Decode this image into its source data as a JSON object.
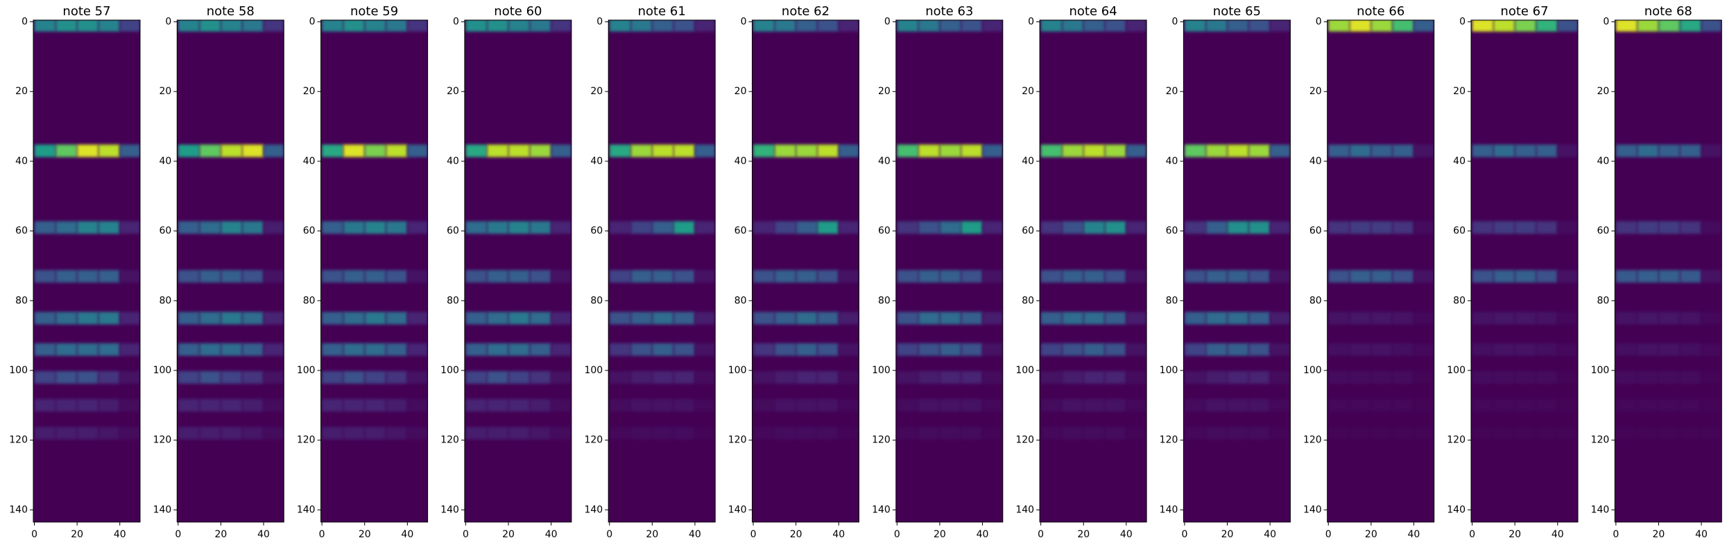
{
  "chart_data": [
    {
      "type": "heatmap",
      "title": "note 57",
      "colormap": "viridis",
      "clim": [
        0,
        1
      ],
      "xlim": [
        -0.5,
        49.5
      ],
      "ylim": [
        143.5,
        -0.5
      ],
      "xticks": [
        0,
        20,
        40
      ],
      "yticks": [
        0,
        20,
        40,
        60,
        80,
        100,
        120,
        140
      ],
      "x": [
        0,
        10,
        20,
        30,
        40
      ],
      "y": [
        1,
        37,
        59,
        73,
        85,
        94,
        102,
        110,
        118
      ],
      "values": [
        [
          0.45,
          0.5,
          0.5,
          0.45,
          0.2
        ],
        [
          0.55,
          0.75,
          0.95,
          0.9,
          0.3
        ],
        [
          0.3,
          0.35,
          0.45,
          0.45,
          0.1
        ],
        [
          0.25,
          0.3,
          0.3,
          0.3,
          0.05
        ],
        [
          0.3,
          0.35,
          0.4,
          0.4,
          0.1
        ],
        [
          0.3,
          0.35,
          0.35,
          0.35,
          0.1
        ],
        [
          0.2,
          0.25,
          0.25,
          0.15,
          0.05
        ],
        [
          0.1,
          0.1,
          0.1,
          0.08,
          0.03
        ],
        [
          0.08,
          0.08,
          0.08,
          0.06,
          0.03
        ]
      ]
    },
    {
      "type": "heatmap",
      "title": "note 58",
      "colormap": "viridis",
      "clim": [
        0,
        1
      ],
      "xlim": [
        -0.5,
        49.5
      ],
      "ylim": [
        143.5,
        -0.5
      ],
      "xticks": [
        0,
        20,
        40
      ],
      "yticks": [
        0,
        20,
        40,
        60,
        80,
        100,
        120,
        140
      ],
      "x": [
        0,
        10,
        20,
        30,
        40
      ],
      "y": [
        1,
        37,
        59,
        73,
        85,
        94,
        102,
        110,
        118
      ],
      "values": [
        [
          0.45,
          0.5,
          0.45,
          0.4,
          0.15
        ],
        [
          0.55,
          0.75,
          0.9,
          0.95,
          0.3
        ],
        [
          0.3,
          0.35,
          0.45,
          0.4,
          0.08
        ],
        [
          0.25,
          0.3,
          0.3,
          0.25,
          0.05
        ],
        [
          0.3,
          0.35,
          0.4,
          0.35,
          0.1
        ],
        [
          0.3,
          0.35,
          0.35,
          0.3,
          0.1
        ],
        [
          0.2,
          0.25,
          0.2,
          0.15,
          0.05
        ],
        [
          0.1,
          0.1,
          0.1,
          0.08,
          0.03
        ],
        [
          0.08,
          0.08,
          0.08,
          0.06,
          0.03
        ]
      ]
    },
    {
      "type": "heatmap",
      "title": "note 59",
      "colormap": "viridis",
      "clim": [
        0,
        1
      ],
      "xlim": [
        -0.5,
        49.5
      ],
      "ylim": [
        143.5,
        -0.5
      ],
      "xticks": [
        0,
        20,
        40
      ],
      "yticks": [
        0,
        20,
        40,
        60,
        80,
        100,
        120,
        140
      ],
      "x": [
        0,
        10,
        20,
        30,
        40
      ],
      "y": [
        1,
        37,
        59,
        73,
        85,
        94,
        102,
        110,
        118
      ],
      "values": [
        [
          0.45,
          0.5,
          0.45,
          0.4,
          0.15
        ],
        [
          0.6,
          0.95,
          0.8,
          0.9,
          0.3
        ],
        [
          0.3,
          0.4,
          0.45,
          0.4,
          0.1
        ],
        [
          0.25,
          0.3,
          0.3,
          0.25,
          0.05
        ],
        [
          0.3,
          0.35,
          0.4,
          0.35,
          0.1
        ],
        [
          0.3,
          0.35,
          0.35,
          0.3,
          0.1
        ],
        [
          0.2,
          0.25,
          0.2,
          0.15,
          0.05
        ],
        [
          0.1,
          0.1,
          0.1,
          0.08,
          0.03
        ],
        [
          0.08,
          0.08,
          0.08,
          0.06,
          0.03
        ]
      ]
    },
    {
      "type": "heatmap",
      "title": "note 60",
      "colormap": "viridis",
      "clim": [
        0,
        1
      ],
      "xlim": [
        -0.5,
        49.5
      ],
      "ylim": [
        143.5,
        -0.5
      ],
      "xticks": [
        0,
        20,
        40
      ],
      "yticks": [
        0,
        20,
        40,
        60,
        80,
        100,
        120,
        140
      ],
      "x": [
        0,
        10,
        20,
        30,
        40
      ],
      "y": [
        1,
        37,
        59,
        73,
        85,
        94,
        102,
        110,
        118
      ],
      "values": [
        [
          0.5,
          0.5,
          0.45,
          0.4,
          0.15
        ],
        [
          0.6,
          0.9,
          0.9,
          0.85,
          0.3
        ],
        [
          0.35,
          0.4,
          0.45,
          0.4,
          0.1
        ],
        [
          0.25,
          0.3,
          0.3,
          0.25,
          0.05
        ],
        [
          0.3,
          0.35,
          0.4,
          0.35,
          0.1
        ],
        [
          0.3,
          0.35,
          0.35,
          0.3,
          0.1
        ],
        [
          0.2,
          0.25,
          0.2,
          0.15,
          0.05
        ],
        [
          0.1,
          0.1,
          0.1,
          0.08,
          0.03
        ],
        [
          0.08,
          0.08,
          0.08,
          0.06,
          0.03
        ]
      ]
    },
    {
      "type": "heatmap",
      "title": "note 61",
      "colormap": "viridis",
      "clim": [
        0,
        1
      ],
      "xlim": [
        -0.5,
        49.5
      ],
      "ylim": [
        143.5,
        -0.5
      ],
      "xticks": [
        0,
        20,
        40
      ],
      "yticks": [
        0,
        20,
        40,
        60,
        80,
        100,
        120,
        140
      ],
      "x": [
        0,
        10,
        20,
        30,
        40
      ],
      "y": [
        1,
        37,
        59,
        73,
        85,
        94,
        102,
        110,
        118
      ],
      "values": [
        [
          0.45,
          0.4,
          0.3,
          0.25,
          0.1
        ],
        [
          0.6,
          0.85,
          0.9,
          0.9,
          0.3
        ],
        [
          0.1,
          0.2,
          0.3,
          0.55,
          0.1
        ],
        [
          0.2,
          0.3,
          0.3,
          0.25,
          0.05
        ],
        [
          0.25,
          0.3,
          0.35,
          0.3,
          0.08
        ],
        [
          0.15,
          0.25,
          0.3,
          0.25,
          0.05
        ],
        [
          0.05,
          0.08,
          0.1,
          0.1,
          0.03
        ],
        [
          0.03,
          0.05,
          0.05,
          0.05,
          0.02
        ],
        [
          0.02,
          0.03,
          0.03,
          0.03,
          0.01
        ]
      ]
    },
    {
      "type": "heatmap",
      "title": "note 62",
      "colormap": "viridis",
      "clim": [
        0,
        1
      ],
      "xlim": [
        -0.5,
        49.5
      ],
      "ylim": [
        143.5,
        -0.5
      ],
      "xticks": [
        0,
        20,
        40
      ],
      "yticks": [
        0,
        20,
        40,
        60,
        80,
        100,
        120,
        140
      ],
      "x": [
        0,
        10,
        20,
        30,
        40
      ],
      "y": [
        1,
        37,
        59,
        73,
        85,
        94,
        102,
        110,
        118
      ],
      "values": [
        [
          0.45,
          0.4,
          0.3,
          0.25,
          0.1
        ],
        [
          0.65,
          0.85,
          0.85,
          0.9,
          0.3
        ],
        [
          0.1,
          0.2,
          0.3,
          0.55,
          0.1
        ],
        [
          0.25,
          0.3,
          0.3,
          0.25,
          0.05
        ],
        [
          0.25,
          0.3,
          0.35,
          0.3,
          0.08
        ],
        [
          0.15,
          0.25,
          0.3,
          0.25,
          0.05
        ],
        [
          0.05,
          0.08,
          0.1,
          0.1,
          0.03
        ],
        [
          0.03,
          0.05,
          0.05,
          0.05,
          0.02
        ],
        [
          0.02,
          0.03,
          0.03,
          0.03,
          0.01
        ]
      ]
    },
    {
      "type": "heatmap",
      "title": "note 63",
      "colormap": "viridis",
      "clim": [
        0,
        1
      ],
      "xlim": [
        -0.5,
        49.5
      ],
      "ylim": [
        143.5,
        -0.5
      ],
      "xticks": [
        0,
        20,
        40
      ],
      "yticks": [
        0,
        20,
        40,
        60,
        80,
        100,
        120,
        140
      ],
      "x": [
        0,
        10,
        20,
        30,
        40
      ],
      "y": [
        1,
        37,
        59,
        73,
        85,
        94,
        102,
        110,
        118
      ],
      "values": [
        [
          0.45,
          0.4,
          0.3,
          0.25,
          0.1
        ],
        [
          0.7,
          0.9,
          0.85,
          0.9,
          0.3
        ],
        [
          0.15,
          0.25,
          0.35,
          0.55,
          0.1
        ],
        [
          0.25,
          0.3,
          0.3,
          0.25,
          0.05
        ],
        [
          0.25,
          0.35,
          0.35,
          0.3,
          0.08
        ],
        [
          0.2,
          0.25,
          0.3,
          0.25,
          0.05
        ],
        [
          0.05,
          0.08,
          0.1,
          0.1,
          0.03
        ],
        [
          0.03,
          0.05,
          0.05,
          0.05,
          0.02
        ],
        [
          0.02,
          0.03,
          0.03,
          0.03,
          0.01
        ]
      ]
    },
    {
      "type": "heatmap",
      "title": "note 64",
      "colormap": "viridis",
      "clim": [
        0,
        1
      ],
      "xlim": [
        -0.5,
        49.5
      ],
      "ylim": [
        143.5,
        -0.5
      ],
      "xticks": [
        0,
        20,
        40
      ],
      "yticks": [
        0,
        20,
        40,
        60,
        80,
        100,
        120,
        140
      ],
      "x": [
        0,
        10,
        20,
        30,
        40
      ],
      "y": [
        1,
        37,
        59,
        73,
        85,
        94,
        102,
        110,
        118
      ],
      "values": [
        [
          0.45,
          0.4,
          0.3,
          0.25,
          0.1
        ],
        [
          0.7,
          0.85,
          0.9,
          0.85,
          0.3
        ],
        [
          0.15,
          0.25,
          0.45,
          0.5,
          0.1
        ],
        [
          0.25,
          0.3,
          0.3,
          0.25,
          0.05
        ],
        [
          0.3,
          0.35,
          0.35,
          0.3,
          0.08
        ],
        [
          0.2,
          0.25,
          0.3,
          0.25,
          0.05
        ],
        [
          0.05,
          0.08,
          0.1,
          0.1,
          0.03
        ],
        [
          0.03,
          0.05,
          0.05,
          0.05,
          0.02
        ],
        [
          0.02,
          0.03,
          0.03,
          0.03,
          0.01
        ]
      ]
    },
    {
      "type": "heatmap",
      "title": "note 65",
      "colormap": "viridis",
      "clim": [
        0,
        1
      ],
      "xlim": [
        -0.5,
        49.5
      ],
      "ylim": [
        143.5,
        -0.5
      ],
      "xticks": [
        0,
        20,
        40
      ],
      "yticks": [
        0,
        20,
        40,
        60,
        80,
        100,
        120,
        140
      ],
      "x": [
        0,
        10,
        20,
        30,
        40
      ],
      "y": [
        1,
        37,
        59,
        73,
        85,
        94,
        102,
        110,
        118
      ],
      "values": [
        [
          0.45,
          0.4,
          0.3,
          0.25,
          0.1
        ],
        [
          0.75,
          0.85,
          0.9,
          0.85,
          0.3
        ],
        [
          0.15,
          0.3,
          0.5,
          0.5,
          0.1
        ],
        [
          0.25,
          0.3,
          0.3,
          0.25,
          0.05
        ],
        [
          0.3,
          0.35,
          0.35,
          0.3,
          0.08
        ],
        [
          0.2,
          0.3,
          0.3,
          0.25,
          0.05
        ],
        [
          0.05,
          0.08,
          0.1,
          0.1,
          0.03
        ],
        [
          0.03,
          0.05,
          0.05,
          0.05,
          0.02
        ],
        [
          0.02,
          0.03,
          0.03,
          0.03,
          0.01
        ]
      ]
    },
    {
      "type": "heatmap",
      "title": "note 66",
      "colormap": "viridis",
      "clim": [
        0,
        1
      ],
      "xlim": [
        -0.5,
        49.5
      ],
      "ylim": [
        143.5,
        -0.5
      ],
      "xticks": [
        0,
        20,
        40
      ],
      "yticks": [
        0,
        20,
        40,
        60,
        80,
        100,
        120,
        140
      ],
      "x": [
        0,
        10,
        20,
        30,
        40
      ],
      "y": [
        1,
        37,
        59,
        73,
        85,
        94,
        102,
        110,
        118
      ],
      "values": [
        [
          0.85,
          0.95,
          0.85,
          0.7,
          0.3
        ],
        [
          0.3,
          0.35,
          0.3,
          0.3,
          0.05
        ],
        [
          0.15,
          0.18,
          0.18,
          0.15,
          0.03
        ],
        [
          0.25,
          0.3,
          0.3,
          0.25,
          0.05
        ],
        [
          0.05,
          0.06,
          0.06,
          0.05,
          0.02
        ],
        [
          0.04,
          0.05,
          0.05,
          0.04,
          0.02
        ],
        [
          0.03,
          0.03,
          0.03,
          0.03,
          0.01
        ],
        [
          0.02,
          0.02,
          0.02,
          0.02,
          0.01
        ],
        [
          0.01,
          0.01,
          0.01,
          0.01,
          0.01
        ]
      ]
    },
    {
      "type": "heatmap",
      "title": "note 67",
      "colormap": "viridis",
      "clim": [
        0,
        1
      ],
      "xlim": [
        -0.5,
        49.5
      ],
      "ylim": [
        143.5,
        -0.5
      ],
      "xticks": [
        0,
        20,
        40
      ],
      "yticks": [
        0,
        20,
        40,
        60,
        80,
        100,
        120,
        140
      ],
      "x": [
        0,
        10,
        20,
        30,
        40
      ],
      "y": [
        1,
        37,
        59,
        73,
        85,
        94,
        102,
        110,
        118
      ],
      "values": [
        [
          0.95,
          0.9,
          0.8,
          0.65,
          0.25
        ],
        [
          0.3,
          0.35,
          0.3,
          0.3,
          0.05
        ],
        [
          0.15,
          0.18,
          0.18,
          0.15,
          0.03
        ],
        [
          0.25,
          0.3,
          0.3,
          0.25,
          0.05
        ],
        [
          0.05,
          0.06,
          0.06,
          0.05,
          0.02
        ],
        [
          0.04,
          0.05,
          0.05,
          0.04,
          0.02
        ],
        [
          0.03,
          0.03,
          0.03,
          0.03,
          0.01
        ],
        [
          0.02,
          0.02,
          0.02,
          0.02,
          0.01
        ],
        [
          0.01,
          0.01,
          0.01,
          0.01,
          0.01
        ]
      ]
    },
    {
      "type": "heatmap",
      "title": "note 68",
      "colormap": "viridis",
      "clim": [
        0,
        1
      ],
      "xlim": [
        -0.5,
        49.5
      ],
      "ylim": [
        143.5,
        -0.5
      ],
      "xticks": [
        0,
        20,
        40
      ],
      "yticks": [
        0,
        20,
        40,
        60,
        80,
        100,
        120,
        140
      ],
      "x": [
        0,
        10,
        20,
        30,
        40
      ],
      "y": [
        1,
        37,
        59,
        73,
        85,
        94,
        102,
        110,
        118
      ],
      "values": [
        [
          0.95,
          0.85,
          0.75,
          0.6,
          0.25
        ],
        [
          0.3,
          0.35,
          0.3,
          0.3,
          0.05
        ],
        [
          0.15,
          0.18,
          0.18,
          0.15,
          0.03
        ],
        [
          0.28,
          0.3,
          0.3,
          0.28,
          0.05
        ],
        [
          0.05,
          0.06,
          0.06,
          0.05,
          0.02
        ],
        [
          0.04,
          0.05,
          0.05,
          0.04,
          0.02
        ],
        [
          0.03,
          0.03,
          0.03,
          0.03,
          0.01
        ],
        [
          0.02,
          0.02,
          0.02,
          0.02,
          0.01
        ],
        [
          0.01,
          0.01,
          0.01,
          0.01,
          0.01
        ]
      ]
    }
  ]
}
